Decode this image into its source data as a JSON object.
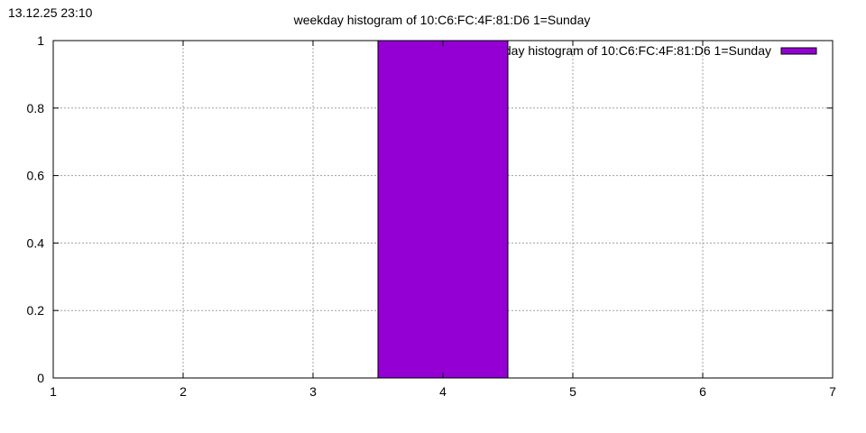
{
  "timestamp": "13.12.25 23:10",
  "chart_data": {
    "type": "bar",
    "title": "weekday histogram of 10:C6:FC:4F:81:D6 1=Sunday",
    "xlabel": "",
    "ylabel": "",
    "xlim": [
      1,
      7
    ],
    "ylim": [
      0,
      1
    ],
    "xticks": [
      "1",
      "2",
      "3",
      "4",
      "5",
      "6",
      "7"
    ],
    "yticks": [
      "0",
      "0.2",
      "0.4",
      "0.6",
      "0.8",
      "1"
    ],
    "grid": true,
    "legend_position": "top-right",
    "series": [
      {
        "name": "weekday histogram of 10:C6:FC:4F:81:D6 1=Sunday",
        "color": "#9400D3",
        "bars": [
          {
            "x": 4,
            "width": 1,
            "value": 1
          }
        ]
      }
    ]
  }
}
